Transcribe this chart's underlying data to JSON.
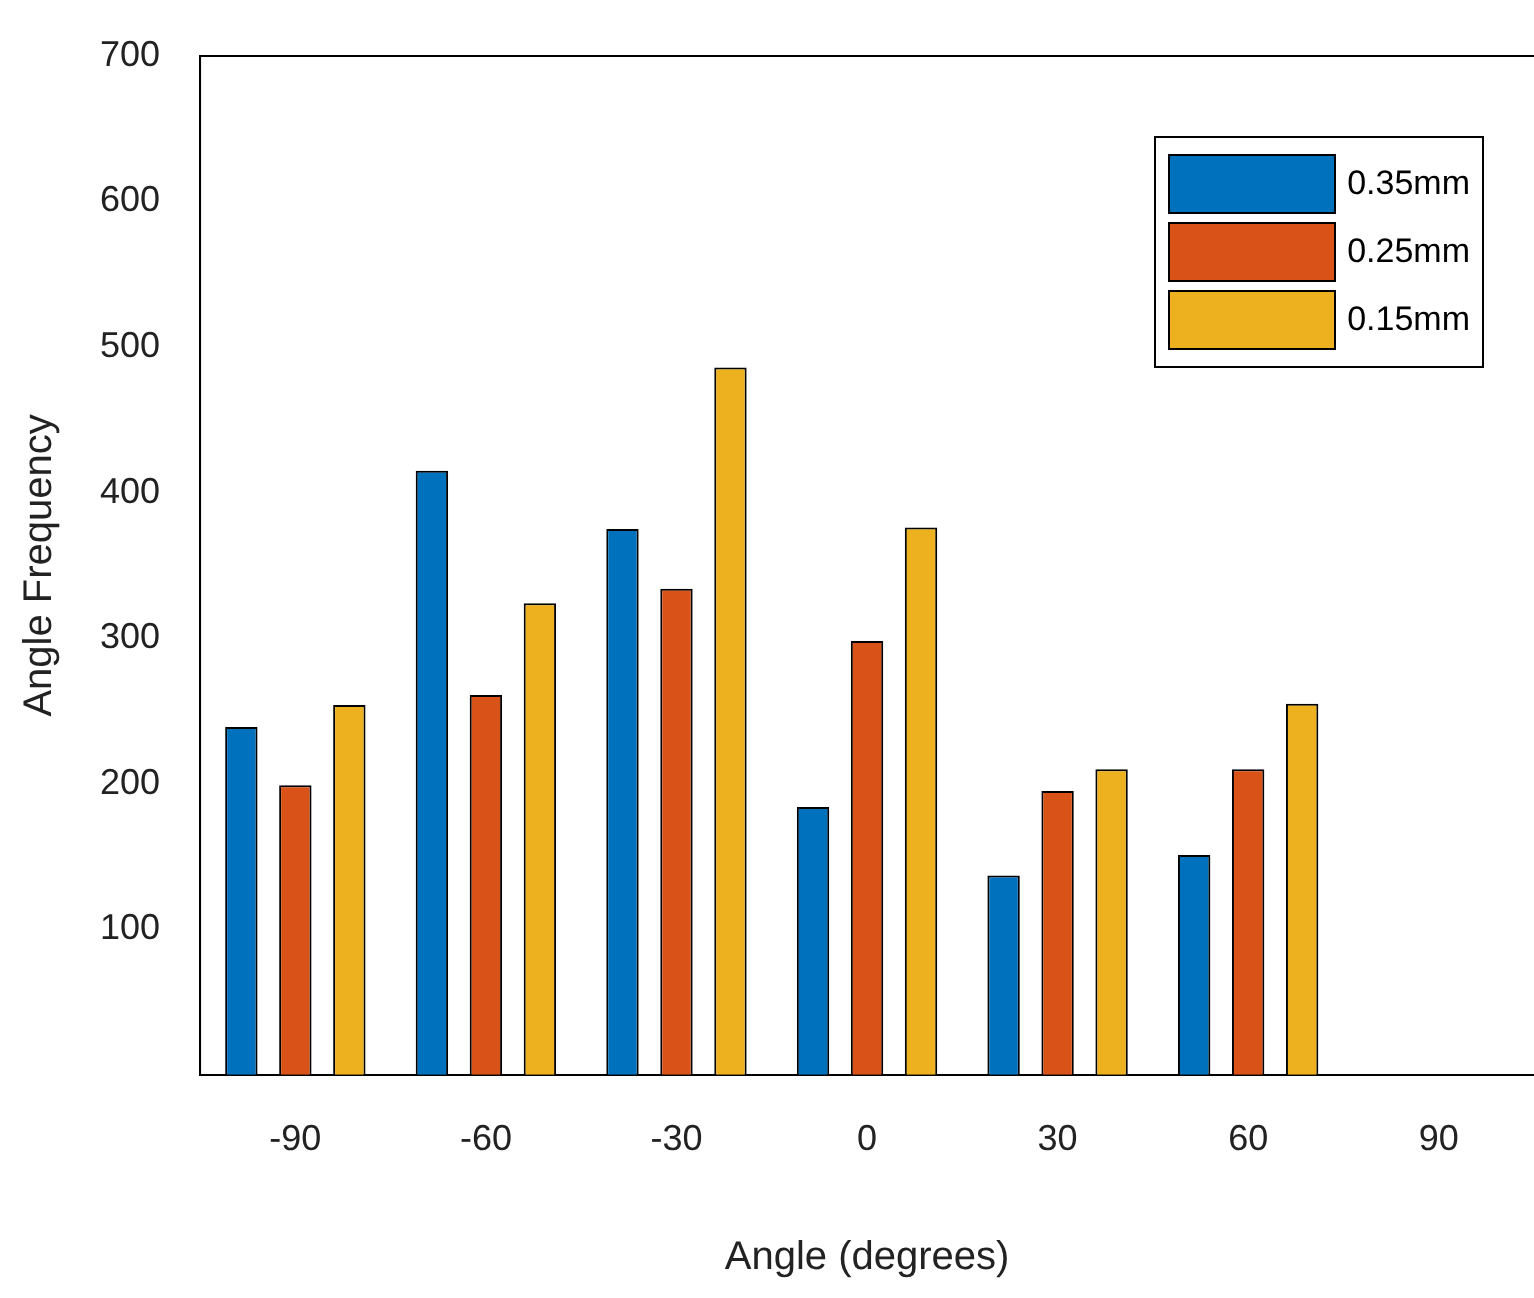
{
  "chart_data": {
    "type": "bar",
    "xlabel": "Angle (degrees)",
    "ylabel": "Angle Frequency",
    "categories": [
      "-90",
      "-60",
      "-30",
      "0",
      "30",
      "60",
      "90"
    ],
    "series": [
      {
        "name": "0.35mm",
        "color": "#0072bd",
        "values": [
          239,
          415,
          375,
          184,
          137,
          151,
          null
        ]
      },
      {
        "name": "0.25mm",
        "color": "#d95319",
        "values": [
          199,
          261,
          334,
          298,
          195,
          210,
          null
        ]
      },
      {
        "name": "0.15mm",
        "color": "#edb120",
        "values": [
          254,
          324,
          486,
          376,
          210,
          255,
          null
        ]
      }
    ],
    "ylim": [
      0,
      700
    ],
    "yticks": [
      100,
      200,
      300,
      400,
      500,
      600,
      700
    ],
    "grid": false,
    "legend": "top right"
  }
}
